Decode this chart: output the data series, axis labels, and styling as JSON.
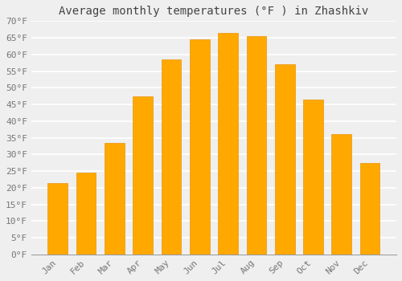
{
  "title": "Average monthly temperatures (°F ) in Zhashkiv",
  "months": [
    "Jan",
    "Feb",
    "Mar",
    "Apr",
    "May",
    "Jun",
    "Jul",
    "Aug",
    "Sep",
    "Oct",
    "Nov",
    "Dec"
  ],
  "values": [
    21.5,
    24.5,
    33.5,
    47.5,
    58.5,
    64.5,
    66.5,
    65.5,
    57.0,
    46.5,
    36.0,
    27.5
  ],
  "bar_color_top": "#FFBB33",
  "bar_color": "#FFA800",
  "bar_edge_color": "#E8950A",
  "background_color": "#EFEFEF",
  "plot_bg_color": "#EFEFEF",
  "grid_color": "#FFFFFF",
  "ylim": [
    0,
    70
  ],
  "yticks": [
    0,
    5,
    10,
    15,
    20,
    25,
    30,
    35,
    40,
    45,
    50,
    55,
    60,
    65,
    70
  ],
  "ytick_labels": [
    "0°F",
    "5°F",
    "10°F",
    "15°F",
    "20°F",
    "25°F",
    "30°F",
    "35°F",
    "40°F",
    "45°F",
    "50°F",
    "55°F",
    "60°F",
    "65°F",
    "70°F"
  ],
  "title_fontsize": 10,
  "tick_fontsize": 8,
  "font_family": "monospace",
  "bar_width": 0.7
}
